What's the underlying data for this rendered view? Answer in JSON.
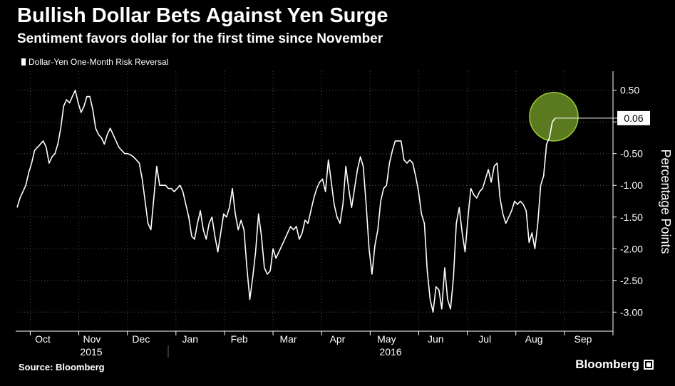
{
  "chart_data": {
    "type": "line",
    "title": "Bullish Dollar Bets Against Yen Surge",
    "subtitle": "Sentiment favors dollar for the first time since November",
    "ylabel": "Percentage Points",
    "ylim": [
      -3.3,
      0.8
    ],
    "yticks": [
      0.5,
      "0.00",
      -0.5,
      -1.0,
      -1.5,
      -2.0,
      -2.5,
      -3.0
    ],
    "ytick_labels": [
      "0.50",
      "",
      "-0.50",
      "-1.00",
      "-1.50",
      "-2.00",
      "-2.50",
      "-3.00"
    ],
    "xtick_labels": [
      "Oct",
      "Nov",
      "Dec",
      "Jan",
      "Feb",
      "Mar",
      "Apr",
      "May",
      "Jun",
      "Jul",
      "Aug",
      "Sep"
    ],
    "year_labels": [
      "2015",
      "2016"
    ],
    "grid": true,
    "last_value_label": "0.06",
    "highlight_color": "#6b8e23",
    "series": [
      {
        "name": "Dollar-Yen One-Month Risk Reversal",
        "color": "#ffffff",
        "values": [
          -1.35,
          -1.2,
          -1.1,
          -1.0,
          -0.8,
          -0.65,
          -0.45,
          -0.4,
          -0.35,
          -0.3,
          -0.4,
          -0.65,
          -0.55,
          -0.5,
          -0.35,
          -0.1,
          0.25,
          0.35,
          0.3,
          0.4,
          0.5,
          0.3,
          0.15,
          0.25,
          0.4,
          0.4,
          0.2,
          -0.1,
          -0.2,
          -0.25,
          -0.35,
          -0.2,
          -0.1,
          -0.2,
          -0.3,
          -0.4,
          -0.45,
          -0.5,
          -0.5,
          -0.52,
          -0.55,
          -0.6,
          -0.65,
          -0.9,
          -1.25,
          -1.6,
          -1.7,
          -1.2,
          -0.7,
          -1.0,
          -1.0,
          -1.0,
          -1.05,
          -1.05,
          -1.1,
          -1.05,
          -1.0,
          -1.1,
          -1.3,
          -1.5,
          -1.8,
          -1.85,
          -1.6,
          -1.4,
          -1.7,
          -1.85,
          -1.6,
          -1.5,
          -1.8,
          -2.05,
          -1.75,
          -1.45,
          -1.5,
          -1.35,
          -1.05,
          -1.45,
          -1.7,
          -1.55,
          -1.7,
          -2.3,
          -2.8,
          -2.45,
          -2.05,
          -1.45,
          -1.8,
          -2.3,
          -2.4,
          -2.35,
          -2.0,
          -2.15,
          -2.05,
          -1.95,
          -1.85,
          -1.75,
          -1.65,
          -1.7,
          -1.65,
          -1.85,
          -1.75,
          -1.55,
          -1.6,
          -1.4,
          -1.2,
          -1.05,
          -0.95,
          -0.9,
          -1.1,
          -0.6,
          -0.95,
          -1.3,
          -1.5,
          -1.6,
          -1.3,
          -0.7,
          -1.05,
          -1.35,
          -1.05,
          -0.75,
          -0.55,
          -0.7,
          -1.3,
          -2.0,
          -2.4,
          -1.95,
          -1.7,
          -1.25,
          -1.05,
          -1.0,
          -0.65,
          -0.45,
          -0.3,
          -0.3,
          -0.3,
          -0.6,
          -0.65,
          -0.6,
          -0.65,
          -0.85,
          -1.1,
          -1.45,
          -1.6,
          -2.35,
          -2.8,
          -3.0,
          -2.6,
          -2.65,
          -2.95,
          -2.3,
          -2.8,
          -2.95,
          -2.45,
          -1.6,
          -1.35,
          -1.75,
          -2.05,
          -1.5,
          -1.05,
          -1.15,
          -1.2,
          -1.1,
          -1.05,
          -0.9,
          -0.75,
          -0.95,
          -0.7,
          -0.65,
          -1.2,
          -1.45,
          -1.6,
          -1.5,
          -1.4,
          -1.25,
          -1.3,
          -1.25,
          -1.3,
          -1.4,
          -1.9,
          -1.75,
          -2.0,
          -1.6,
          -1.0,
          -0.85,
          -0.35,
          -0.25,
          0.0,
          0.06
        ]
      }
    ]
  },
  "footer": {
    "source": "Source: Bloomberg",
    "brand": "Bloomberg"
  }
}
